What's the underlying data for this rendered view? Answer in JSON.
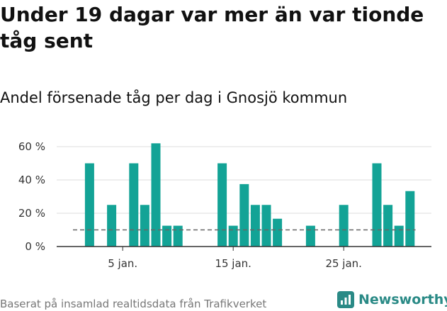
{
  "title": "Under 19 dagar var mer än var tionde tåg sent",
  "subtitle": "Andel försenade tåg per dag i Gnosjö kommun",
  "footer": "Baserat på insamlad realtidsdata från Trafikverket",
  "brand": {
    "name": "Newsworthy",
    "color": "#2a8a86"
  },
  "colors": {
    "bar": "#13a396",
    "reference_line": "#666666",
    "grid": "#dddddd"
  },
  "chart_data": {
    "type": "bar",
    "x": [
      1,
      2,
      3,
      4,
      5,
      6,
      7,
      8,
      9,
      10,
      11,
      12,
      13,
      14,
      15,
      16,
      17,
      18,
      19,
      20,
      21,
      22,
      23,
      24,
      25,
      26,
      27,
      28,
      29,
      30,
      31
    ],
    "values": [
      0,
      50,
      0,
      25,
      0,
      50,
      25,
      62,
      12.5,
      12.5,
      0,
      0,
      0,
      50,
      12.5,
      37.5,
      25,
      25,
      16.7,
      0,
      0,
      12.5,
      0,
      0,
      25,
      0,
      0,
      50,
      25,
      12.5,
      33.3
    ],
    "reference_line": 10,
    "ylim": [
      0,
      65
    ],
    "yticks": [
      0,
      20,
      40,
      60
    ],
    "ytick_labels": [
      "0 %",
      "20 %",
      "40 %",
      "60 %"
    ],
    "xticks": [
      5,
      15,
      25
    ],
    "xtick_labels": [
      "5 jan.",
      "15 jan.",
      "25 jan."
    ],
    "grid": "horizontal",
    "xlabel": "",
    "ylabel": ""
  }
}
